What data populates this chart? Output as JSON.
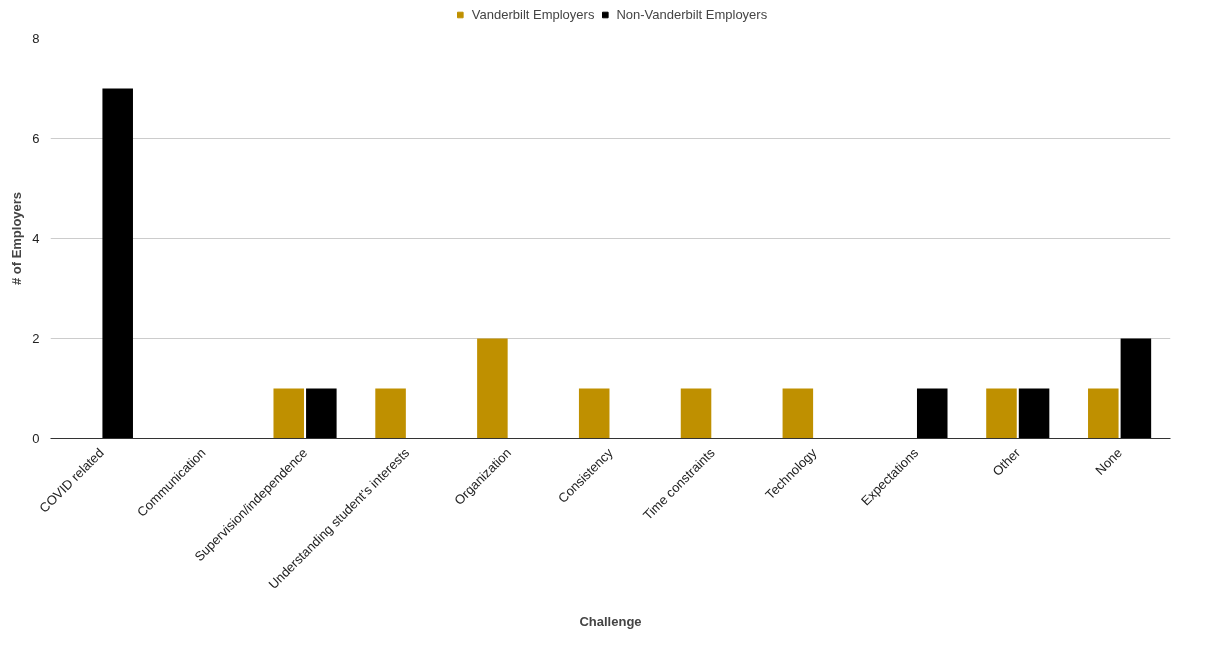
{
  "chart_data": {
    "type": "bar",
    "xlabel": "Challenge",
    "ylabel": "# of Employers",
    "categories": [
      "COVID related",
      "Communication",
      "Supervision/independence",
      "Understanding student's interests",
      "Organization",
      "Consistency",
      "Time constraints",
      "Technology",
      "Expectations",
      "Other",
      "None"
    ],
    "series": [
      {
        "name": "Vanderbilt Employers",
        "color": "#bf9000",
        "values": [
          0,
          0,
          1,
          1,
          2,
          1,
          1,
          1,
          0,
          1,
          1
        ]
      },
      {
        "name": "Non-Vanderbilt Employers",
        "color": "#000000",
        "values": [
          7,
          0,
          1,
          0,
          0,
          0,
          0,
          0,
          1,
          1,
          2
        ]
      }
    ],
    "ylim": [
      0,
      8
    ],
    "yticks": [
      0,
      2,
      4,
      6,
      8
    ],
    "grid": "y",
    "legend": "top"
  }
}
